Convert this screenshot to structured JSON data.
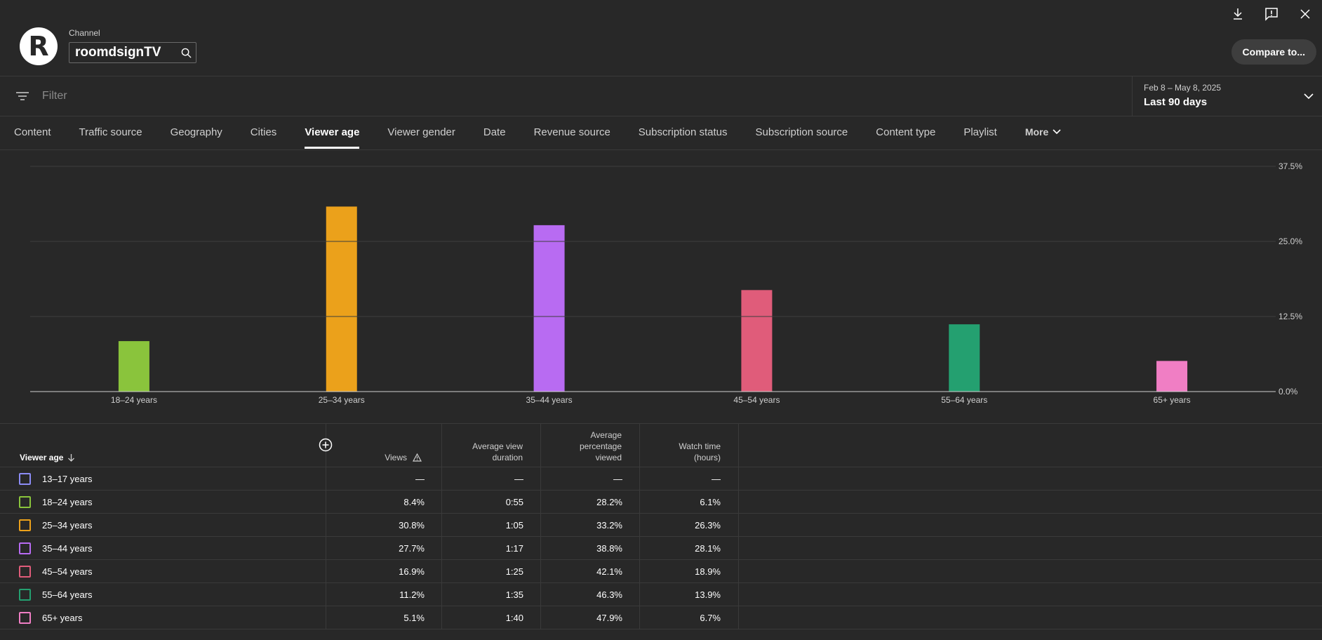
{
  "header": {
    "channel_label": "Channel",
    "channel_name": "roomdsignTV",
    "logo_letter": "R",
    "compare_button": "Compare to...",
    "icons": [
      "download-icon",
      "feedback-icon",
      "close-icon"
    ]
  },
  "filter": {
    "placeholder": "Filter",
    "date_range": "Feb 8 – May 8, 2025",
    "period": "Last 90 days"
  },
  "tabs": [
    {
      "label": "Content",
      "active": false
    },
    {
      "label": "Traffic source",
      "active": false
    },
    {
      "label": "Geography",
      "active": false
    },
    {
      "label": "Cities",
      "active": false
    },
    {
      "label": "Viewer age",
      "active": true
    },
    {
      "label": "Viewer gender",
      "active": false
    },
    {
      "label": "Date",
      "active": false
    },
    {
      "label": "Revenue source",
      "active": false
    },
    {
      "label": "Subscription status",
      "active": false
    },
    {
      "label": "Subscription source",
      "active": false
    },
    {
      "label": "Content type",
      "active": false
    },
    {
      "label": "Playlist",
      "active": false
    }
  ],
  "more_label": "More",
  "chart_data": {
    "type": "bar",
    "categories": [
      "18–24 years",
      "25–34 years",
      "35–44 years",
      "45–54 years",
      "55–64 years",
      "65+ years"
    ],
    "values": [
      8.4,
      30.8,
      27.7,
      16.9,
      11.2,
      5.1
    ],
    "colors": [
      "#8ac43c",
      "#eba11b",
      "#b86bf2",
      "#e05c7a",
      "#24a070",
      "#f07ec4"
    ],
    "ylim": [
      0,
      37.5
    ],
    "yticks": [
      "0.0%",
      "12.5%",
      "25.0%",
      "37.5%"
    ],
    "ytick_values": [
      0,
      12.5,
      25,
      37.5
    ],
    "grid": true
  },
  "table": {
    "headers": {
      "age": "Viewer age",
      "views": "Views",
      "avd": [
        "Average view",
        "duration"
      ],
      "apv": [
        "Average",
        "percentage",
        "viewed"
      ],
      "watch": [
        "Watch time",
        "(hours)"
      ]
    },
    "rows": [
      {
        "label": "13–17 years",
        "color": "#8c8cf5",
        "views": "—",
        "avd": "—",
        "apv": "—",
        "watch": "—"
      },
      {
        "label": "18–24 years",
        "color": "#8ac43c",
        "views": "8.4%",
        "avd": "0:55",
        "apv": "28.2%",
        "watch": "6.1%"
      },
      {
        "label": "25–34 years",
        "color": "#eba11b",
        "views": "30.8%",
        "avd": "1:05",
        "apv": "33.2%",
        "watch": "26.3%"
      },
      {
        "label": "35–44 years",
        "color": "#b86bf2",
        "views": "27.7%",
        "avd": "1:17",
        "apv": "38.8%",
        "watch": "28.1%"
      },
      {
        "label": "45–54 years",
        "color": "#e05c7a",
        "views": "16.9%",
        "avd": "1:25",
        "apv": "42.1%",
        "watch": "18.9%"
      },
      {
        "label": "55–64 years",
        "color": "#24a070",
        "views": "11.2%",
        "avd": "1:35",
        "apv": "46.3%",
        "watch": "13.9%"
      },
      {
        "label": "65+ years",
        "color": "#f07ec4",
        "views": "5.1%",
        "avd": "1:40",
        "apv": "47.9%",
        "watch": "6.7%"
      }
    ]
  }
}
